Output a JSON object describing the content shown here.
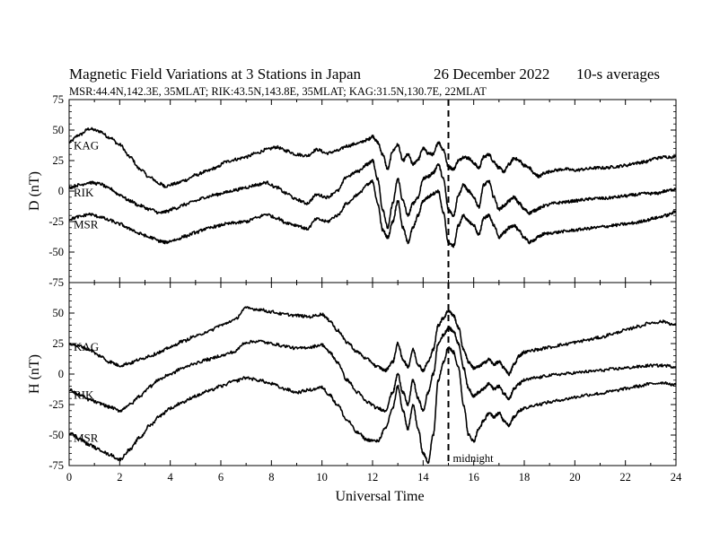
{
  "header": {
    "title": "Magnetic Field Variations at 3 Stations in Japan",
    "date": "26 December 2022",
    "averaging": "10-s averages",
    "stations_line": "MSR:44.4N,142.3E, 35MLAT;  RIK:43.5N,143.8E, 35MLAT;  KAG:31.5N,130.7E, 22MLAT"
  },
  "chart_data": [
    {
      "type": "line",
      "panel": "D",
      "ylabel": "D (nT)",
      "xlabel": "",
      "ylim": [
        -75,
        75
      ],
      "yticks": [
        75,
        50,
        25,
        0,
        -25,
        -50,
        -75
      ],
      "xlim": [
        0,
        24
      ],
      "grid": false,
      "series": [
        {
          "name": "KAG",
          "x": [
            0,
            0.4,
            0.8,
            1.2,
            1.6,
            2.0,
            2.4,
            2.8,
            3.2,
            3.6,
            3.8,
            4.2,
            4.6,
            5.0,
            5.4,
            5.8,
            6.2,
            6.6,
            7.0,
            7.4,
            7.8,
            8.2,
            8.6,
            9.0,
            9.4,
            9.8,
            10.2,
            10.6,
            11.0,
            11.4,
            11.8,
            12.0,
            12.2,
            12.4,
            12.6,
            12.8,
            13.0,
            13.2,
            13.4,
            13.6,
            13.8,
            14.0,
            14.2,
            14.4,
            14.6,
            14.8,
            15.0,
            15.2,
            15.4,
            15.6,
            15.8,
            16.0,
            16.2,
            16.4,
            16.6,
            16.8,
            17.0,
            17.2,
            17.4,
            17.6,
            17.8,
            18.0,
            18.2,
            18.4,
            18.6,
            18.8,
            19.2,
            19.6,
            20.0,
            20.4,
            20.8,
            21.2,
            21.6,
            22.0,
            22.4,
            22.8,
            23.2,
            23.6,
            24.0
          ],
          "values": [
            40,
            46,
            51,
            49,
            44,
            38,
            28,
            18,
            11,
            6,
            4,
            6,
            9,
            13,
            16,
            19,
            24,
            26,
            28,
            31,
            34,
            36,
            33,
            30,
            29,
            34,
            31,
            33,
            37,
            39,
            42,
            45,
            40,
            30,
            18,
            33,
            38,
            25,
            30,
            22,
            26,
            35,
            31,
            30,
            40,
            34,
            20,
            18,
            25,
            28,
            27,
            23,
            19,
            28,
            30,
            24,
            19,
            16,
            22,
            27,
            25,
            21,
            19,
            14,
            12,
            15,
            17,
            18,
            17,
            18,
            19,
            19,
            20,
            21,
            23,
            24,
            27,
            28,
            28
          ]
        },
        {
          "name": "RIK",
          "x": [
            0,
            0.4,
            0.8,
            1.2,
            1.6,
            2.0,
            2.4,
            2.8,
            3.2,
            3.6,
            3.8,
            4.2,
            4.6,
            5.0,
            5.4,
            5.8,
            6.2,
            6.6,
            7.0,
            7.4,
            7.8,
            8.2,
            8.6,
            9.0,
            9.4,
            9.8,
            10.2,
            10.6,
            11.0,
            11.4,
            11.8,
            12.0,
            12.2,
            12.4,
            12.6,
            12.8,
            13.0,
            13.2,
            13.4,
            13.6,
            13.8,
            14.0,
            14.2,
            14.4,
            14.6,
            14.8,
            15.0,
            15.2,
            15.4,
            15.6,
            15.8,
            16.0,
            16.2,
            16.4,
            16.6,
            16.8,
            17.0,
            17.2,
            17.4,
            17.6,
            17.8,
            18.0,
            18.2,
            18.4,
            18.6,
            18.8,
            19.2,
            19.6,
            20.0,
            20.4,
            20.8,
            21.2,
            21.6,
            22.0,
            22.4,
            22.8,
            23.2,
            23.6,
            24.0
          ],
          "values": [
            3,
            5,
            7,
            6,
            2,
            -3,
            -8,
            -12,
            -15,
            -18,
            -17,
            -14,
            -11,
            -8,
            -5,
            -3,
            -1,
            1,
            3,
            5,
            7,
            3,
            -2,
            -7,
            -10,
            -3,
            -5,
            0,
            12,
            16,
            22,
            25,
            10,
            -15,
            -30,
            -10,
            10,
            -8,
            -20,
            -10,
            -5,
            10,
            12,
            15,
            22,
            10,
            -15,
            -20,
            -3,
            5,
            0,
            -5,
            -13,
            5,
            8,
            -5,
            -15,
            -12,
            -8,
            -5,
            -10,
            -15,
            -18,
            -16,
            -14,
            -12,
            -10,
            -9,
            -8,
            -7,
            -6,
            -6,
            -5,
            -4,
            -3,
            -2,
            -2,
            0,
            2
          ]
        },
        {
          "name": "MSR",
          "x": [
            0,
            0.4,
            0.8,
            1.2,
            1.6,
            2.0,
            2.4,
            2.8,
            3.2,
            3.6,
            3.8,
            4.2,
            4.6,
            5.0,
            5.4,
            5.8,
            6.2,
            6.6,
            7.0,
            7.4,
            7.8,
            8.2,
            8.6,
            9.0,
            9.4,
            9.8,
            10.2,
            10.6,
            11.0,
            11.4,
            11.8,
            12.0,
            12.2,
            12.4,
            12.6,
            12.8,
            13.0,
            13.2,
            13.4,
            13.6,
            13.8,
            14.0,
            14.2,
            14.4,
            14.6,
            14.8,
            15.0,
            15.2,
            15.4,
            15.6,
            15.8,
            16.0,
            16.2,
            16.4,
            16.6,
            16.8,
            17.0,
            17.2,
            17.4,
            17.6,
            17.8,
            18.0,
            18.2,
            18.4,
            18.6,
            18.8,
            19.2,
            19.6,
            20.0,
            20.4,
            20.8,
            21.2,
            21.6,
            22.0,
            22.4,
            22.8,
            23.2,
            23.6,
            24.0
          ],
          "values": [
            -23,
            -21,
            -19,
            -21,
            -24,
            -27,
            -31,
            -35,
            -38,
            -41,
            -42,
            -40,
            -37,
            -34,
            -31,
            -29,
            -27,
            -26,
            -25,
            -22,
            -19,
            -22,
            -26,
            -28,
            -31,
            -23,
            -25,
            -20,
            -10,
            -3,
            5,
            8,
            -10,
            -32,
            -38,
            -25,
            -8,
            -30,
            -42,
            -30,
            -20,
            -8,
            -5,
            -2,
            0,
            -18,
            -42,
            -45,
            -28,
            -20,
            -25,
            -28,
            -36,
            -22,
            -20,
            -28,
            -38,
            -34,
            -30,
            -28,
            -33,
            -38,
            -42,
            -40,
            -37,
            -35,
            -34,
            -33,
            -32,
            -31,
            -30,
            -29,
            -28,
            -27,
            -26,
            -24,
            -22,
            -20,
            -17
          ]
        }
      ]
    },
    {
      "type": "line",
      "panel": "H",
      "ylabel": "H (nT)",
      "xlabel": "Universal Time",
      "ylim": [
        -75,
        75
      ],
      "yticks": [
        50,
        25,
        0,
        -25,
        -50,
        -75
      ],
      "xlim": [
        0,
        24
      ],
      "xticks": [
        0,
        2,
        4,
        6,
        8,
        10,
        12,
        14,
        16,
        18,
        20,
        22,
        24
      ],
      "grid": false,
      "series": [
        {
          "name": "KAG",
          "x": [
            0,
            0.4,
            0.8,
            1.2,
            1.6,
            2.0,
            2.4,
            2.8,
            3.2,
            3.6,
            4.0,
            4.5,
            5.0,
            5.5,
            6.0,
            6.5,
            7.0,
            7.5,
            8.0,
            8.5,
            9.0,
            9.5,
            10.0,
            10.3,
            10.6,
            11.0,
            11.4,
            11.8,
            12.2,
            12.5,
            12.8,
            13.0,
            13.2,
            13.4,
            13.6,
            13.8,
            14.0,
            14.2,
            14.4,
            14.6,
            14.8,
            15.0,
            15.2,
            15.4,
            15.6,
            15.8,
            16.0,
            16.2,
            16.4,
            16.6,
            16.8,
            17.0,
            17.2,
            17.4,
            17.6,
            17.8,
            18.0,
            18.5,
            19.0,
            19.5,
            20.0,
            20.5,
            21.0,
            21.5,
            22.0,
            22.5,
            23.0,
            23.5,
            24.0
          ],
          "values": [
            25,
            23,
            20,
            15,
            10,
            7,
            9,
            12,
            15,
            18,
            22,
            27,
            31,
            35,
            40,
            44,
            54,
            53,
            51,
            49,
            48,
            47,
            49,
            44,
            36,
            26,
            18,
            12,
            6,
            3,
            10,
            25,
            12,
            6,
            20,
            8,
            3,
            10,
            20,
            40,
            46,
            52,
            48,
            38,
            20,
            10,
            5,
            6,
            9,
            12,
            8,
            10,
            5,
            0,
            8,
            15,
            18,
            20,
            22,
            24,
            26,
            28,
            30,
            33,
            36,
            39,
            42,
            43,
            40
          ]
        },
        {
          "name": "RIK",
          "x": [
            0,
            0.4,
            0.8,
            1.2,
            1.6,
            2.0,
            2.4,
            2.8,
            3.2,
            3.6,
            4.0,
            4.5,
            5.0,
            5.5,
            6.0,
            6.5,
            7.0,
            7.5,
            8.0,
            8.5,
            9.0,
            9.5,
            10.0,
            10.3,
            10.6,
            11.0,
            11.4,
            11.8,
            12.2,
            12.5,
            12.8,
            13.0,
            13.2,
            13.4,
            13.6,
            13.8,
            14.0,
            14.2,
            14.4,
            14.6,
            14.8,
            15.0,
            15.2,
            15.4,
            15.6,
            15.8,
            16.0,
            16.2,
            16.4,
            16.6,
            16.8,
            17.0,
            17.2,
            17.4,
            17.6,
            17.8,
            18.0,
            18.5,
            19.0,
            19.5,
            20.0,
            20.5,
            21.0,
            21.5,
            22.0,
            22.5,
            23.0,
            23.5,
            24.0
          ],
          "values": [
            -13,
            -17,
            -21,
            -24,
            -27,
            -30,
            -25,
            -18,
            -10,
            -4,
            0,
            5,
            9,
            12,
            15,
            18,
            26,
            27,
            25,
            23,
            21,
            22,
            24,
            18,
            10,
            -5,
            -15,
            -23,
            -28,
            -30,
            -15,
            0,
            -15,
            -25,
            -5,
            -20,
            -30,
            -15,
            0,
            25,
            32,
            38,
            35,
            25,
            5,
            -12,
            -18,
            -15,
            -12,
            -8,
            -12,
            -10,
            -16,
            -20,
            -12,
            -8,
            -5,
            -3,
            -1,
            0,
            1,
            2,
            3,
            4,
            5,
            6,
            7,
            7,
            6
          ]
        },
        {
          "name": "MSR",
          "x": [
            0,
            0.4,
            0.8,
            1.2,
            1.6,
            2.0,
            2.4,
            2.8,
            3.2,
            3.6,
            4.0,
            4.5,
            5.0,
            5.5,
            6.0,
            6.5,
            7.0,
            7.5,
            8.0,
            8.5,
            9.0,
            9.5,
            10.0,
            10.3,
            10.6,
            11.0,
            11.4,
            11.8,
            12.2,
            12.5,
            12.8,
            13.0,
            13.2,
            13.4,
            13.6,
            13.8,
            14.0,
            14.2,
            14.4,
            14.6,
            14.8,
            15.0,
            15.2,
            15.4,
            15.6,
            15.8,
            16.0,
            16.2,
            16.4,
            16.6,
            16.8,
            17.0,
            17.2,
            17.4,
            17.6,
            17.8,
            18.0,
            18.5,
            19.0,
            19.5,
            20.0,
            20.5,
            21.0,
            21.5,
            22.0,
            22.5,
            23.0,
            23.5,
            24.0
          ],
          "values": [
            -48,
            -53,
            -58,
            -62,
            -66,
            -70,
            -62,
            -52,
            -42,
            -34,
            -28,
            -23,
            -18,
            -14,
            -10,
            -6,
            -3,
            -5,
            -8,
            -12,
            -15,
            -13,
            -11,
            -17,
            -25,
            -38,
            -48,
            -54,
            -55,
            -45,
            -28,
            -10,
            -30,
            -45,
            -25,
            -45,
            -65,
            -72,
            -50,
            -5,
            10,
            22,
            18,
            5,
            -25,
            -50,
            -55,
            -45,
            -38,
            -32,
            -35,
            -32,
            -38,
            -42,
            -35,
            -30,
            -28,
            -25,
            -23,
            -21,
            -19,
            -17,
            -16,
            -14,
            -12,
            -10,
            -8,
            -7,
            -9
          ]
        }
      ]
    }
  ],
  "annotations": {
    "marker_time": 15,
    "marker_label": "midnight"
  }
}
